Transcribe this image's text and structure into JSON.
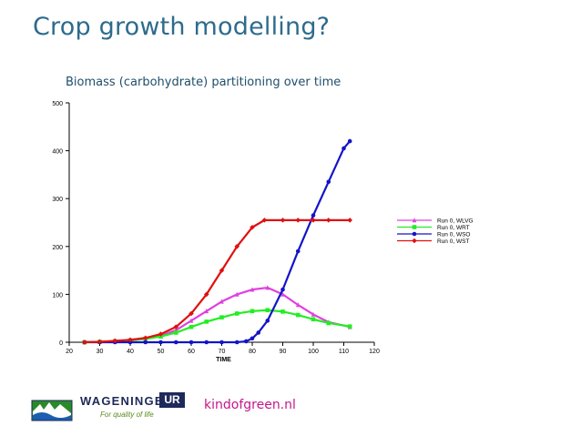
{
  "slide": {
    "title": "Crop growth modelling?",
    "subtitle": "Biomass (carbohydrate) partitioning over time",
    "footer_link": "kindofgreen.nl",
    "logo": {
      "name": "WAGENINGEN",
      "badge": "UR",
      "tagline": "For quality of life"
    }
  },
  "chart_data": {
    "type": "scatter",
    "title": "",
    "xlabel": "TIME",
    "ylabel": "",
    "xlim": [
      20,
      120
    ],
    "ylim": [
      0,
      500
    ],
    "xticks": [
      20,
      30,
      40,
      50,
      60,
      70,
      80,
      90,
      100,
      110,
      120
    ],
    "yticks": [
      0,
      100,
      200,
      300,
      400,
      500
    ],
    "grid": false,
    "legend_position": "right",
    "series": [
      {
        "name": "Run 0, WLVG",
        "color": "#e040e0",
        "marker": "triangle",
        "x": [
          25,
          30,
          35,
          40,
          45,
          50,
          55,
          60,
          65,
          70,
          75,
          80,
          85,
          90,
          95,
          100,
          105,
          112
        ],
        "y": [
          0,
          1,
          2,
          4,
          8,
          14,
          25,
          45,
          65,
          85,
          100,
          110,
          114,
          100,
          78,
          58,
          42,
          32
        ]
      },
      {
        "name": "Run 0, WRT",
        "color": "#22ee22",
        "marker": "square",
        "x": [
          25,
          30,
          35,
          40,
          45,
          50,
          55,
          60,
          65,
          70,
          75,
          80,
          85,
          90,
          95,
          100,
          105,
          112
        ],
        "y": [
          0,
          1,
          2,
          4,
          7,
          12,
          20,
          32,
          43,
          52,
          60,
          65,
          67,
          64,
          57,
          48,
          40,
          33
        ]
      },
      {
        "name": "Run 0, WSO",
        "color": "#1414c8",
        "marker": "circle",
        "x": [
          25,
          30,
          35,
          40,
          45,
          50,
          55,
          60,
          65,
          70,
          75,
          78,
          80,
          82,
          85,
          90,
          95,
          100,
          105,
          110,
          112
        ],
        "y": [
          0,
          0,
          0,
          0,
          0,
          0,
          0,
          0,
          0,
          0,
          0,
          2,
          8,
          20,
          45,
          110,
          190,
          265,
          335,
          405,
          420
        ]
      },
      {
        "name": "Run 0, WST",
        "color": "#e01010",
        "marker": "diamond",
        "x": [
          25,
          30,
          35,
          40,
          45,
          50,
          55,
          60,
          65,
          70,
          75,
          80,
          84,
          90,
          95,
          100,
          105,
          112
        ],
        "y": [
          0,
          1,
          3,
          5,
          9,
          17,
          32,
          60,
          100,
          150,
          200,
          240,
          255,
          255,
          255,
          255,
          255,
          255
        ]
      }
    ]
  }
}
